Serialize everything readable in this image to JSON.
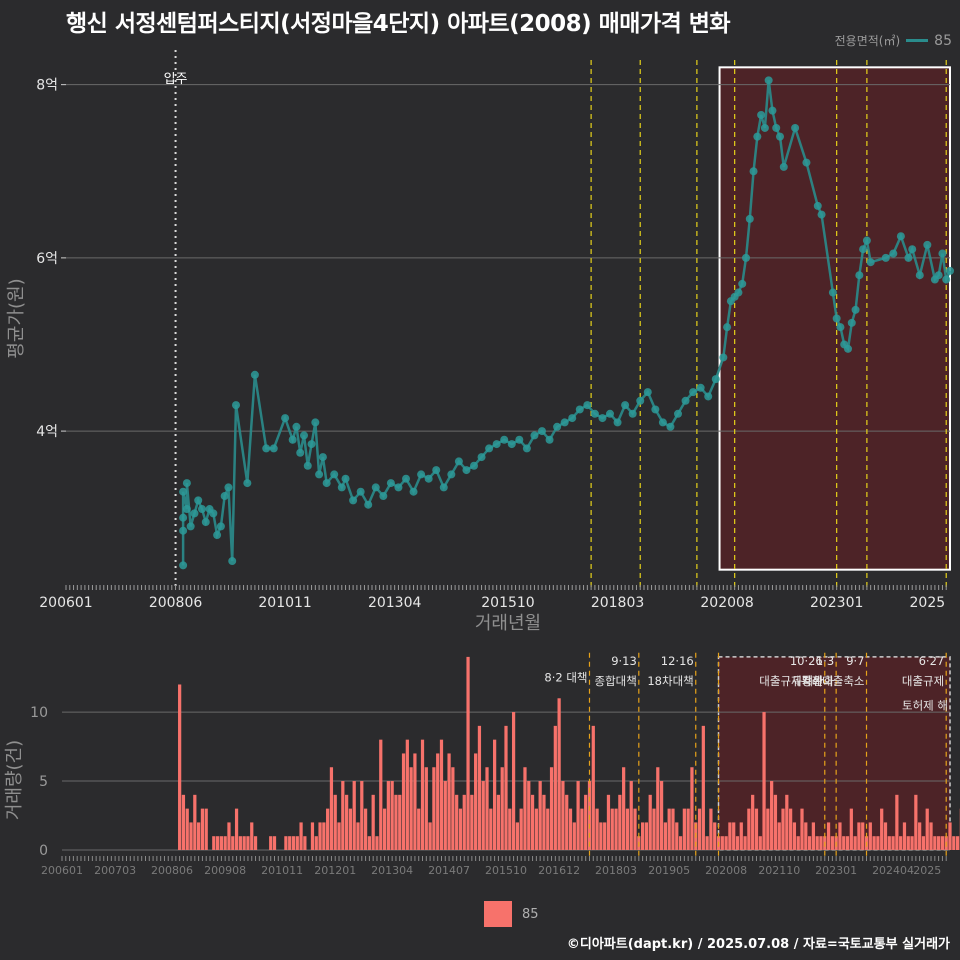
{
  "title": "행신 서정센텀퍼스티지(서정마을4단지) 아파트(2008) 매매가격 변화",
  "legend_top": {
    "title": "전용면적(㎡)",
    "item": "85"
  },
  "legend_bottom": {
    "item": "85"
  },
  "footer": "©디아파트(dapt.kr) / 2025.07.08 / 자료=국토교통부 실거래가",
  "colors": {
    "background": "#2b2b2d",
    "price_line": "#2a8c8c",
    "price_point": "#2d9a99",
    "volume_bar": "#f7726b",
    "policy_line": "#e6d21a",
    "highlight_fill": "#5a2226"
  },
  "chart_data": [
    {
      "type": "line",
      "title": "행신 서정센텀퍼스티지(서정마을4단지) 아파트(2008) 매매가격 변화",
      "xlabel": "거래년월",
      "ylabel": "평균가(원)",
      "x_tick_labels": [
        "200601",
        "200806",
        "201011",
        "201304",
        "201510",
        "201803",
        "202008",
        "202301",
        "2025"
      ],
      "y_tick_labels": [
        "4억",
        "6억",
        "8억"
      ],
      "y_ticks_value": [
        40000,
        60000,
        80000
      ],
      "y_unit": "만원",
      "xlim": [
        "2006-01",
        "2025-07"
      ],
      "ylim": [
        22000,
        84000
      ],
      "vlines": [
        {
          "x": "2008-06",
          "label": "입주"
        }
      ],
      "policy_lines": [
        "2017-08",
        "2018-09",
        "2019-12",
        "2020-10",
        "2023-01",
        "2023-09",
        "2025-06"
      ],
      "highlight": {
        "from": "2020-06",
        "to": "2025-07",
        "y_from": 24000,
        "y_to": 82000
      },
      "series": [
        {
          "name": "85",
          "points": [
            [
              "2008-08",
              24500
            ],
            [
              "2008-08",
              28500
            ],
            [
              "2008-08",
              30000
            ],
            [
              "2008-08",
              33000
            ],
            [
              "2008-09",
              31000
            ],
            [
              "2008-09",
              34000
            ],
            [
              "2008-10",
              29000
            ],
            [
              "2008-11",
              30500
            ],
            [
              "2008-12",
              32000
            ],
            [
              "2009-01",
              31000
            ],
            [
              "2009-02",
              29500
            ],
            [
              "2009-03",
              31000
            ],
            [
              "2009-04",
              30500
            ],
            [
              "2009-05",
              28000
            ],
            [
              "2009-06",
              29000
            ],
            [
              "2009-07",
              32500
            ],
            [
              "2009-08",
              33500
            ],
            [
              "2009-09",
              25000
            ],
            [
              "2009-10",
              43000
            ],
            [
              "2010-01",
              34000
            ],
            [
              "2010-03",
              46500
            ],
            [
              "2010-06",
              38000
            ],
            [
              "2010-08",
              38000
            ],
            [
              "2010-11",
              41500
            ],
            [
              "2011-01",
              39000
            ],
            [
              "2011-02",
              40500
            ],
            [
              "2011-03",
              37500
            ],
            [
              "2011-04",
              39500
            ],
            [
              "2011-05",
              36000
            ],
            [
              "2011-06",
              38500
            ],
            [
              "2011-07",
              41000
            ],
            [
              "2011-08",
              35000
            ],
            [
              "2011-09",
              37000
            ],
            [
              "2011-10",
              34000
            ],
            [
              "2011-12",
              35000
            ],
            [
              "2012-02",
              33500
            ],
            [
              "2012-03",
              34500
            ],
            [
              "2012-05",
              32000
            ],
            [
              "2012-07",
              33000
            ],
            [
              "2012-09",
              31500
            ],
            [
              "2012-11",
              33500
            ],
            [
              "2013-01",
              32500
            ],
            [
              "2013-03",
              34000
            ],
            [
              "2013-05",
              33500
            ],
            [
              "2013-07",
              34500
            ],
            [
              "2013-09",
              33000
            ],
            [
              "2013-11",
              35000
            ],
            [
              "2014-01",
              34500
            ],
            [
              "2014-03",
              35500
            ],
            [
              "2014-05",
              33500
            ],
            [
              "2014-07",
              35000
            ],
            [
              "2014-09",
              36500
            ],
            [
              "2014-11",
              35500
            ],
            [
              "2015-01",
              36000
            ],
            [
              "2015-03",
              37000
            ],
            [
              "2015-05",
              38000
            ],
            [
              "2015-07",
              38500
            ],
            [
              "2015-09",
              39000
            ],
            [
              "2015-11",
              38500
            ],
            [
              "2016-01",
              39000
            ],
            [
              "2016-03",
              38000
            ],
            [
              "2016-05",
              39500
            ],
            [
              "2016-07",
              40000
            ],
            [
              "2016-09",
              39000
            ],
            [
              "2016-11",
              40500
            ],
            [
              "2017-01",
              41000
            ],
            [
              "2017-03",
              41500
            ],
            [
              "2017-05",
              42500
            ],
            [
              "2017-07",
              43000
            ],
            [
              "2017-09",
              42000
            ],
            [
              "2017-11",
              41500
            ],
            [
              "2018-01",
              42000
            ],
            [
              "2018-03",
              41000
            ],
            [
              "2018-05",
              43000
            ],
            [
              "2018-07",
              42000
            ],
            [
              "2018-09",
              43500
            ],
            [
              "2018-11",
              44500
            ],
            [
              "2019-01",
              42500
            ],
            [
              "2019-03",
              41000
            ],
            [
              "2019-05",
              40500
            ],
            [
              "2019-07",
              42000
            ],
            [
              "2019-09",
              43500
            ],
            [
              "2019-11",
              44500
            ],
            [
              "2020-01",
              45000
            ],
            [
              "2020-03",
              44000
            ],
            [
              "2020-05",
              46000
            ],
            [
              "2020-07",
              48500
            ],
            [
              "2020-08",
              52000
            ],
            [
              "2020-09",
              55000
            ],
            [
              "2020-10",
              55500
            ],
            [
              "2020-11",
              56000
            ],
            [
              "2020-12",
              57000
            ],
            [
              "2021-01",
              60000
            ],
            [
              "2021-02",
              64500
            ],
            [
              "2021-03",
              70000
            ],
            [
              "2021-04",
              74000
            ],
            [
              "2021-05",
              76500
            ],
            [
              "2021-06",
              75000
            ],
            [
              "2021-07",
              80500
            ],
            [
              "2021-08",
              77000
            ],
            [
              "2021-09",
              75000
            ],
            [
              "2021-10",
              74000
            ],
            [
              "2021-11",
              70500
            ],
            [
              "2022-02",
              75000
            ],
            [
              "2022-05",
              71000
            ],
            [
              "2022-08",
              66000
            ],
            [
              "2022-09",
              65000
            ],
            [
              "2022-12",
              56000
            ],
            [
              "2023-01",
              53000
            ],
            [
              "2023-02",
              52000
            ],
            [
              "2023-03",
              50000
            ],
            [
              "2023-04",
              49500
            ],
            [
              "2023-05",
              52500
            ],
            [
              "2023-06",
              54000
            ],
            [
              "2023-07",
              58000
            ],
            [
              "2023-08",
              61000
            ],
            [
              "2023-09",
              62000
            ],
            [
              "2023-10",
              59500
            ],
            [
              "2024-02",
              60000
            ],
            [
              "2024-04",
              60500
            ],
            [
              "2024-06",
              62500
            ],
            [
              "2024-08",
              60000
            ],
            [
              "2024-09",
              61000
            ],
            [
              "2024-11",
              58000
            ],
            [
              "2025-01",
              61500
            ],
            [
              "2025-03",
              57500
            ],
            [
              "2025-04",
              58000
            ],
            [
              "2025-05",
              60500
            ],
            [
              "2025-06",
              57500
            ],
            [
              "2025-07",
              58500
            ]
          ]
        }
      ]
    },
    {
      "type": "bar",
      "ylabel": "거래량(건)",
      "x_tick_labels": [
        "200601",
        "200703",
        "200806",
        "200908",
        "201011",
        "201201",
        "201304",
        "201407",
        "201510",
        "201612",
        "201803",
        "201905",
        "202008",
        "202110",
        "202301",
        "202404",
        "2025"
      ],
      "y_tick_labels": [
        "0",
        "5",
        "10"
      ],
      "y_ticks_value": [
        0,
        5,
        10
      ],
      "xlim": [
        "2006-01",
        "2025-07"
      ],
      "ylim": [
        0,
        14.5
      ],
      "highlight": {
        "from": "2020-06",
        "to": "2025-07",
        "y_from": 0,
        "y_to": 14
      },
      "policy_lines": [
        {
          "x": "2017-08",
          "label": [
            "8·2 대책"
          ]
        },
        {
          "x": "2018-09",
          "label": [
            "9·13",
            "종합대책"
          ]
        },
        {
          "x": "2019-12",
          "label": [
            "12·16",
            "18차대책"
          ]
        },
        {
          "x": "2020-06",
          "label": []
        },
        {
          "x": "2022-10",
          "label": [
            "10·26",
            "대출규제강화"
          ]
        },
        {
          "x": "2023-01",
          "label": [
            "1·3",
            "규제완화"
          ]
        },
        {
          "x": "2023-09",
          "label": [
            "9·7",
            "특례대출축소"
          ]
        },
        {
          "x": "2025-06",
          "label": [
            "6·27",
            "대출규제"
          ]
        }
      ],
      "extra_labels": [
        "토허제 해"
      ],
      "series": [
        {
          "name": "85",
          "months_from": "2008-08",
          "values": [
            12,
            4,
            3,
            2,
            4,
            2,
            3,
            3,
            0,
            1,
            1,
            1,
            1,
            2,
            1,
            3,
            1,
            1,
            1,
            2,
            1,
            0,
            0,
            0,
            1,
            1,
            0,
            0,
            1,
            1,
            1,
            1,
            2,
            1,
            0,
            2,
            1,
            2,
            2,
            3,
            6,
            4,
            2,
            5,
            4,
            3,
            5,
            2,
            5,
            3,
            1,
            4,
            1,
            8,
            3,
            5,
            5,
            4,
            4,
            7,
            8,
            6,
            7,
            3,
            8,
            6,
            2,
            6,
            7,
            8,
            5,
            7,
            6,
            4,
            3,
            4,
            14,
            4,
            7,
            9,
            5,
            6,
            3,
            8,
            4,
            6,
            9,
            3,
            10,
            2,
            3,
            6,
            5,
            4,
            3,
            5,
            4,
            3,
            6,
            9,
            11,
            5,
            4,
            3,
            2,
            5,
            3,
            4,
            5,
            9,
            3,
            2,
            2,
            4,
            3,
            3,
            4,
            6,
            3,
            5,
            3,
            1,
            2,
            2,
            4,
            3,
            6,
            5,
            2,
            3,
            3,
            2,
            1,
            3,
            3,
            6,
            2,
            3,
            9,
            1,
            3,
            2,
            1,
            1,
            1,
            2,
            2,
            1,
            2,
            1,
            3,
            4,
            3,
            1,
            10,
            3,
            5,
            4,
            2,
            3,
            4,
            3,
            2,
            1,
            3,
            2,
            1,
            2,
            1,
            1,
            1,
            2,
            1,
            1,
            2,
            1,
            1,
            3,
            1,
            2,
            2,
            1,
            2,
            1,
            1,
            3,
            2,
            1,
            1,
            4,
            1,
            2,
            1,
            1,
            4,
            2,
            1,
            3,
            2,
            1,
            1,
            1,
            1,
            2,
            1,
            1,
            3,
            1,
            2,
            4,
            1,
            2,
            1,
            1,
            1,
            2,
            1,
            1,
            3,
            1,
            2,
            1,
            3,
            1,
            2,
            2
          ]
        }
      ]
    }
  ]
}
